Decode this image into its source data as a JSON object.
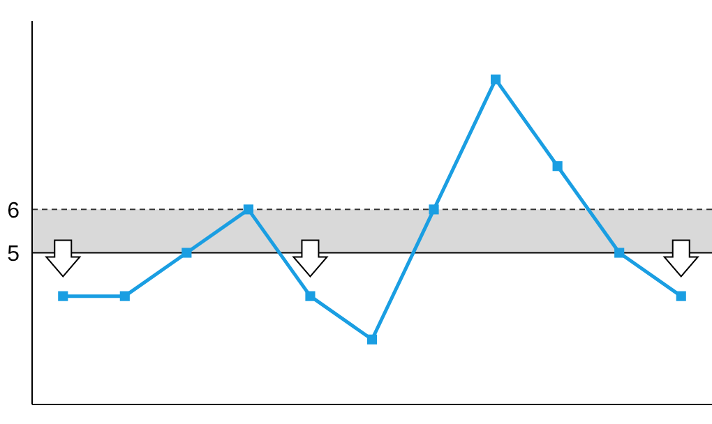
{
  "chart_data": {
    "type": "line",
    "categories": [
      null,
      null,
      null,
      null,
      null,
      null,
      null,
      null,
      null,
      null,
      null
    ],
    "series": [
      {
        "color": "#1a9ee2",
        "values": [
          4,
          4,
          5,
          6,
          4,
          3,
          6,
          9,
          7,
          5,
          4
        ]
      }
    ],
    "ylim": [
      1.5,
      10.35
    ],
    "yticks": [
      5,
      6
    ],
    "grid": false,
    "marker": "square",
    "line_style": "solid",
    "tick_labels": "y",
    "bands": [
      {
        "axis": "y",
        "from": 5,
        "to": 6,
        "color": "#d9d9d9"
      }
    ],
    "ref_lines": [
      {
        "axis": "y",
        "value": 6,
        "line_style": "dashed",
        "color": "#333333"
      },
      {
        "axis": "y",
        "value": 5,
        "line_style": "solid",
        "color": "#000000"
      }
    ]
  }
}
